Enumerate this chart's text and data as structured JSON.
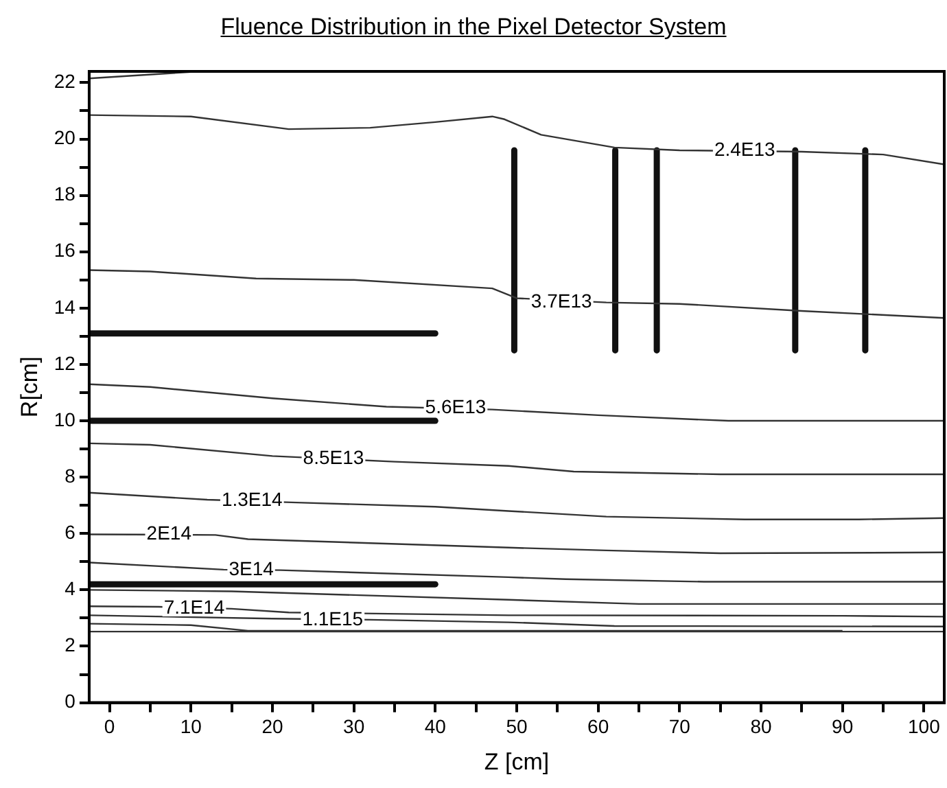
{
  "chart_data": {
    "type": "line",
    "title": "Fluence Distribution in the Pixel Detector System",
    "xlabel": "Z [cm]",
    "ylabel": "R[cm]",
    "xlim": [
      -2.5,
      102.5
    ],
    "ylim": [
      0,
      22.4
    ],
    "xticks": [
      0,
      {
        "value": 5,
        "label": null
      },
      10,
      {
        "value": 15,
        "label": null
      },
      20,
      {
        "value": 25,
        "label": null
      },
      30,
      {
        "value": 35,
        "label": null
      },
      40,
      {
        "value": 45,
        "label": null
      },
      50,
      {
        "value": 55,
        "label": null
      },
      60,
      {
        "value": 65,
        "label": null
      },
      70,
      {
        "value": 75,
        "label": null
      },
      80,
      {
        "value": 85,
        "label": null
      },
      90,
      {
        "value": 95,
        "label": null
      },
      100
    ],
    "yticks": [
      0,
      {
        "value": 1,
        "label": null
      },
      2,
      {
        "value": 3,
        "label": null
      },
      4,
      {
        "value": 5,
        "label": null
      },
      6,
      {
        "value": 7,
        "label": null
      },
      8,
      {
        "value": 9,
        "label": null
      },
      10,
      {
        "value": 11,
        "label": null
      },
      12,
      {
        "value": 13,
        "label": null
      },
      14,
      {
        "value": 15,
        "label": null
      },
      16,
      {
        "value": 17,
        "label": null
      },
      18,
      {
        "value": 19,
        "label": null
      },
      20,
      {
        "value": 21,
        "label": null
      },
      22
    ],
    "grid": false,
    "legend": false,
    "marker": "none",
    "line_style": "solid",
    "series": [
      {
        "color": "#333333",
        "x": [
          -2.5,
          11
        ],
        "values": [
          22.15,
          22.4
        ]
      },
      {
        "color": "#333333",
        "x": [
          -2.5,
          10,
          22,
          32,
          40,
          47,
          48.5,
          53,
          62,
          70,
          85,
          95,
          102.5
        ],
        "values": [
          20.85,
          20.8,
          20.35,
          20.4,
          20.6,
          20.8,
          20.7,
          20.15,
          19.7,
          19.6,
          19.55,
          19.45,
          19.1
        ]
      },
      {
        "color": "#333333",
        "x": [
          -2.5,
          5,
          18,
          30,
          47,
          50,
          61,
          70,
          85,
          102.5
        ],
        "values": [
          15.35,
          15.3,
          15.05,
          15.0,
          14.7,
          14.35,
          14.2,
          14.15,
          13.9,
          13.65
        ]
      },
      {
        "color": "#333333",
        "x": [
          -2.5,
          5,
          20,
          34,
          47,
          60,
          76,
          102.5
        ],
        "values": [
          11.3,
          11.2,
          10.8,
          10.5,
          10.4,
          10.2,
          10.0,
          10.0
        ]
      },
      {
        "color": "#333333",
        "x": [
          -2.5,
          5,
          20,
          35,
          49,
          57,
          75,
          102.5
        ],
        "values": [
          9.2,
          9.15,
          8.75,
          8.55,
          8.4,
          8.2,
          8.1,
          8.1
        ]
      },
      {
        "color": "#333333",
        "x": [
          -2.5,
          12,
          23,
          40,
          49,
          61,
          78,
          92,
          102.5
        ],
        "values": [
          7.45,
          7.2,
          7.1,
          6.95,
          6.8,
          6.6,
          6.5,
          6.5,
          6.55
        ]
      },
      {
        "color": "#333333",
        "x": [
          -2.5,
          13,
          17,
          49,
          61,
          75,
          102.5
        ],
        "values": [
          5.97,
          5.95,
          5.8,
          5.5,
          5.4,
          5.3,
          5.33
        ]
      },
      {
        "color": "#333333",
        "x": [
          -2.5,
          14,
          21,
          49,
          56,
          73,
          102.5
        ],
        "values": [
          4.97,
          4.72,
          4.7,
          4.45,
          4.38,
          4.29,
          4.29
        ]
      },
      {
        "color": "#333333",
        "x": [
          -2.5,
          15,
          49,
          65,
          102.5
        ],
        "values": [
          4.0,
          3.95,
          3.65,
          3.5,
          3.5
        ]
      },
      {
        "color": "#333333",
        "x": [
          -2.5,
          6,
          15,
          22,
          49,
          90,
          102.5
        ],
        "values": [
          3.42,
          3.4,
          3.33,
          3.2,
          3.1,
          3.08,
          3.05
        ]
      },
      {
        "color": "#333333",
        "x": [
          -2.5,
          20,
          32,
          49,
          62,
          102.5
        ],
        "values": [
          3.1,
          2.98,
          2.94,
          2.85,
          2.72,
          2.7
        ]
      },
      {
        "color": "#333333",
        "x": [
          -2.5,
          10,
          17,
          49,
          90
        ],
        "values": [
          2.8,
          2.75,
          2.55,
          2.55,
          2.55
        ]
      },
      {
        "color": "#333333",
        "x": [
          -2.5,
          102.5
        ],
        "values": [
          2.52,
          2.52
        ]
      },
      {
        "color": "#111111",
        "x": [
          -2.5,
          40
        ],
        "values": [
          13.1,
          13.1
        ]
      },
      {
        "color": "#111111",
        "x": [
          -2.5,
          40
        ],
        "values": [
          10.0,
          10.0
        ]
      },
      {
        "color": "#111111",
        "x": [
          -2.5,
          40
        ],
        "values": [
          4.2,
          4.2
        ]
      },
      {
        "color": "#111111",
        "x": [
          49.7,
          49.7
        ],
        "values": [
          12.5,
          19.6
        ]
      },
      {
        "color": "#111111",
        "x": [
          62.1,
          62.1
        ],
        "values": [
          12.5,
          19.6
        ]
      },
      {
        "color": "#111111",
        "x": [
          67.2,
          67.2
        ],
        "values": [
          12.5,
          19.6
        ]
      },
      {
        "color": "#111111",
        "x": [
          84.2,
          84.2
        ],
        "values": [
          12.5,
          19.6
        ]
      },
      {
        "color": "#111111",
        "x": [
          92.8,
          92.8
        ],
        "values": [
          12.5,
          19.6
        ]
      }
    ],
    "annotations": [
      {
        "text": "2.4E13",
        "x": 78,
        "y": 19.6
      },
      {
        "text": "3.7E13",
        "x": 55.5,
        "y": 14.2
      },
      {
        "text": "5.6E13",
        "x": 42.5,
        "y": 10.45
      },
      {
        "text": "8.5E13",
        "x": 27.5,
        "y": 8.65
      },
      {
        "text": "1.3E14",
        "x": 17.5,
        "y": 7.18
      },
      {
        "text": "2E14",
        "x": 7.3,
        "y": 5.97
      },
      {
        "text": "3E14",
        "x": 17.4,
        "y": 4.7
      },
      {
        "text": "7.1E14",
        "x": 10.4,
        "y": 3.35
      },
      {
        "text": "1.1E15",
        "x": 27.4,
        "y": 2.94
      }
    ]
  }
}
